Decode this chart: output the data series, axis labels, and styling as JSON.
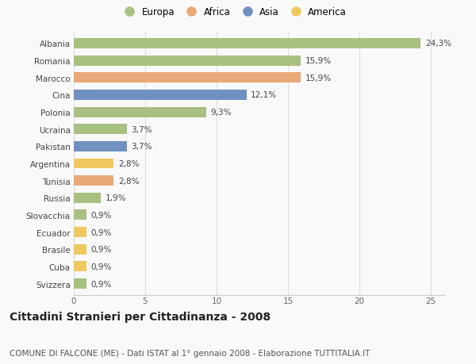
{
  "countries": [
    "Albania",
    "Romania",
    "Marocco",
    "Cina",
    "Polonia",
    "Ucraina",
    "Pakistan",
    "Argentina",
    "Tunisia",
    "Russia",
    "Slovacchia",
    "Ecuador",
    "Brasile",
    "Cuba",
    "Svizzera"
  ],
  "values": [
    24.3,
    15.9,
    15.9,
    12.1,
    9.3,
    3.7,
    3.7,
    2.8,
    2.8,
    1.9,
    0.9,
    0.9,
    0.9,
    0.9,
    0.9
  ],
  "labels": [
    "24,3%",
    "15,9%",
    "15,9%",
    "12,1%",
    "9,3%",
    "3,7%",
    "3,7%",
    "2,8%",
    "2,8%",
    "1,9%",
    "0,9%",
    "0,9%",
    "0,9%",
    "0,9%",
    "0,9%"
  ],
  "continents": [
    "Europa",
    "Europa",
    "Africa",
    "Asia",
    "Europa",
    "Europa",
    "Asia",
    "America",
    "Africa",
    "Europa",
    "Europa",
    "America",
    "America",
    "America",
    "Europa"
  ],
  "continent_colors": {
    "Europa": "#a8c080",
    "Africa": "#e8a878",
    "Asia": "#7090c0",
    "America": "#f0c860"
  },
  "legend_order": [
    "Europa",
    "Africa",
    "Asia",
    "America"
  ],
  "title": "Cittadini Stranieri per Cittadinanza - 2008",
  "subtitle": "COMUNE DI FALCONE (ME) - Dati ISTAT al 1° gennaio 2008 - Elaborazione TUTTITALIA.IT",
  "xlim": [
    0,
    26
  ],
  "xticks": [
    0,
    5,
    10,
    15,
    20,
    25
  ],
  "background_color": "#f9f9f9",
  "bar_height": 0.6,
  "title_fontsize": 10,
  "subtitle_fontsize": 7.5,
  "label_fontsize": 7.5,
  "tick_fontsize": 7.5,
  "legend_fontsize": 8.5
}
